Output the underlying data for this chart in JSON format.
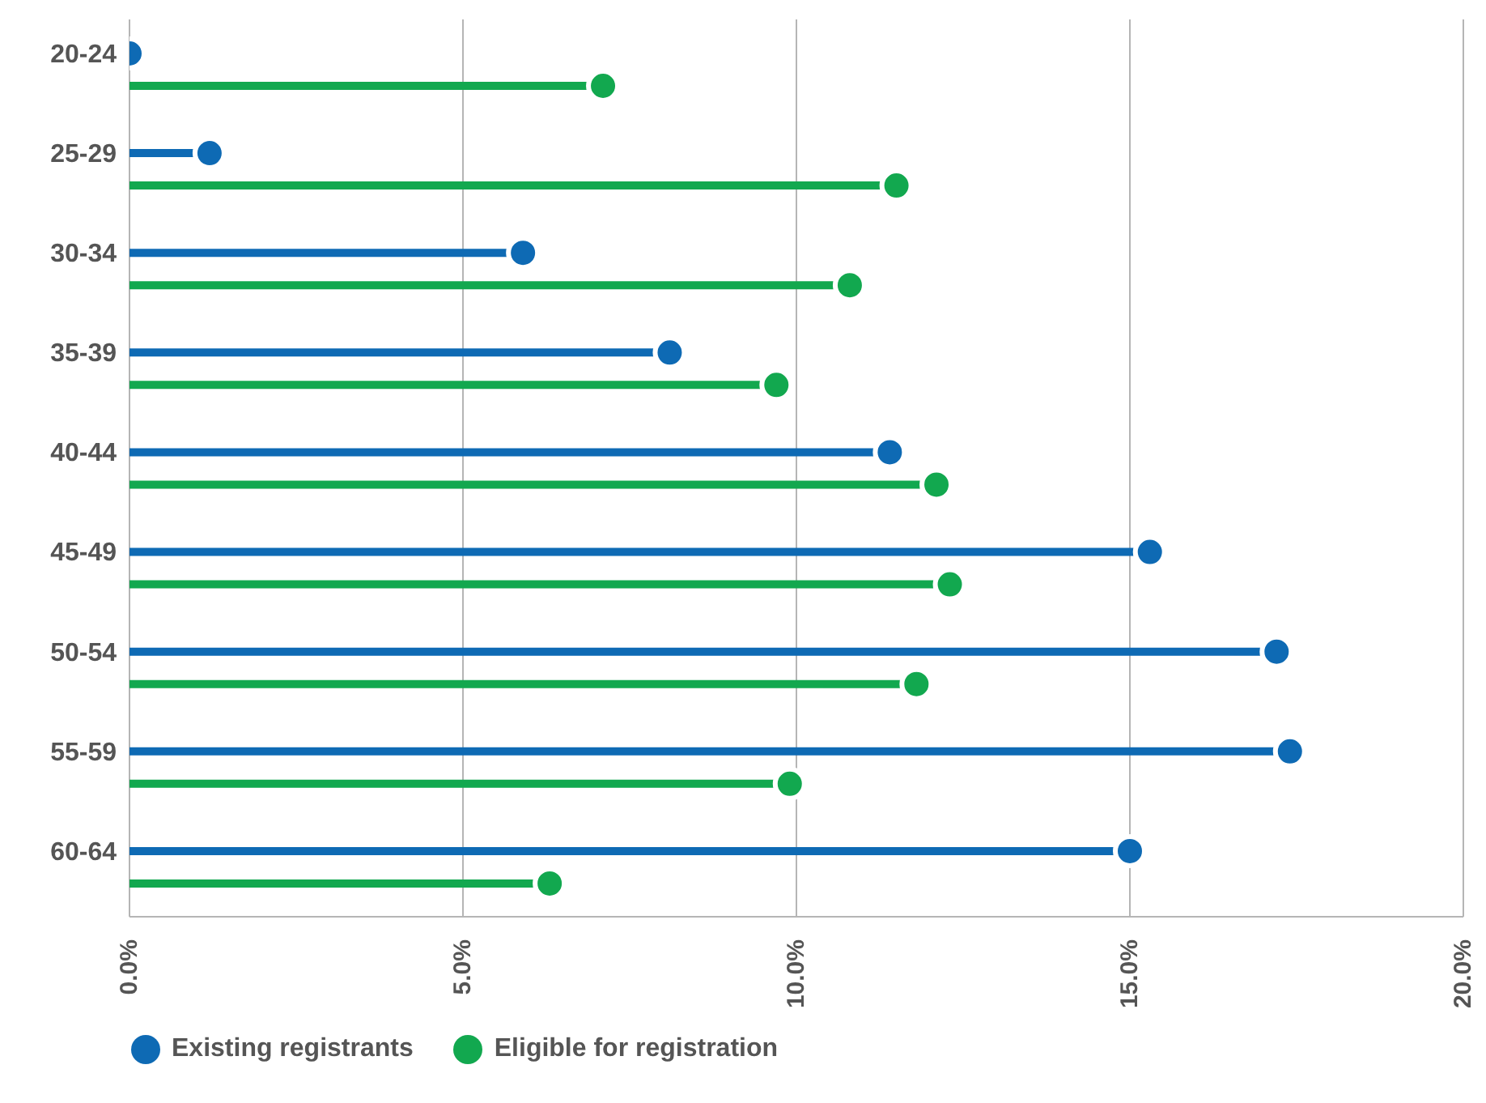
{
  "chart_data": {
    "type": "lollipop",
    "orientation": "horizontal",
    "categories": [
      "20-24",
      "25-29",
      "30-34",
      "35-39",
      "40-44",
      "45-49",
      "50-54",
      "55-59",
      "60-64"
    ],
    "series": [
      {
        "name": "Existing registrants",
        "color": "#0e6ab4",
        "values": [
          0.0,
          1.2,
          5.9,
          8.1,
          11.4,
          15.3,
          17.2,
          17.4,
          15.0
        ]
      },
      {
        "name": "Eligible for registration",
        "color": "#12a84f",
        "values": [
          7.1,
          11.5,
          10.8,
          9.7,
          12.1,
          12.3,
          11.8,
          9.9,
          6.3
        ]
      }
    ],
    "xlim": [
      0,
      20
    ],
    "xticks": [
      {
        "value": 0,
        "label": "0.0%"
      },
      {
        "value": 5,
        "label": "5.0%"
      },
      {
        "value": 10,
        "label": "10.0%"
      },
      {
        "value": 15,
        "label": "15.0%"
      },
      {
        "value": 20,
        "label": "20.0%"
      }
    ],
    "grid": "x",
    "legend": "bottom left",
    "marker": "circle"
  }
}
